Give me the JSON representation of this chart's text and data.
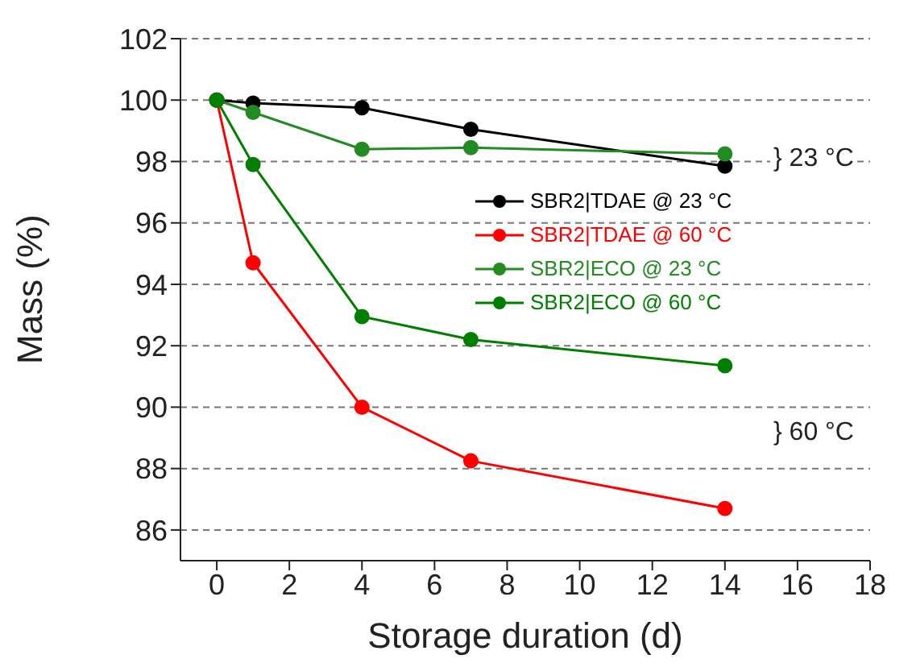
{
  "chart_data": {
    "type": "line",
    "xlabel": "Storage duration (d)",
    "ylabel": "Mass (%)",
    "x": [
      0,
      1,
      4,
      7,
      14
    ],
    "series": [
      {
        "name": "SBR2|TDAE @ 23 °C",
        "color": "#000000",
        "values": [
          100,
          99.9,
          99.75,
          99.05,
          97.85
        ]
      },
      {
        "name": "SBR2|TDAE @ 60 °C",
        "color": "#ff0000",
        "values": [
          100,
          94.7,
          90.0,
          88.25,
          86.7
        ]
      },
      {
        "name": "SBR2|ECO @ 23 °C",
        "color": "#228b22",
        "values": [
          100,
          99.6,
          98.4,
          98.45,
          98.25
        ]
      },
      {
        "name": "SBR2|ECO @ 60 °C",
        "color": "#007f00",
        "values": [
          100,
          97.9,
          92.95,
          92.2,
          91.35
        ]
      }
    ],
    "xlim": [
      -1,
      18
    ],
    "xticks": [
      0,
      2,
      4,
      6,
      8,
      10,
      12,
      14,
      16,
      18
    ],
    "ylim": [
      85,
      102
    ],
    "yticks": [
      86,
      88,
      90,
      92,
      94,
      96,
      98,
      100,
      102
    ],
    "grid": "y",
    "legend": "right",
    "marker": "circle",
    "line_style": "solid",
    "annotations": [
      "} 23 °C",
      "} 60 °C"
    ]
  }
}
